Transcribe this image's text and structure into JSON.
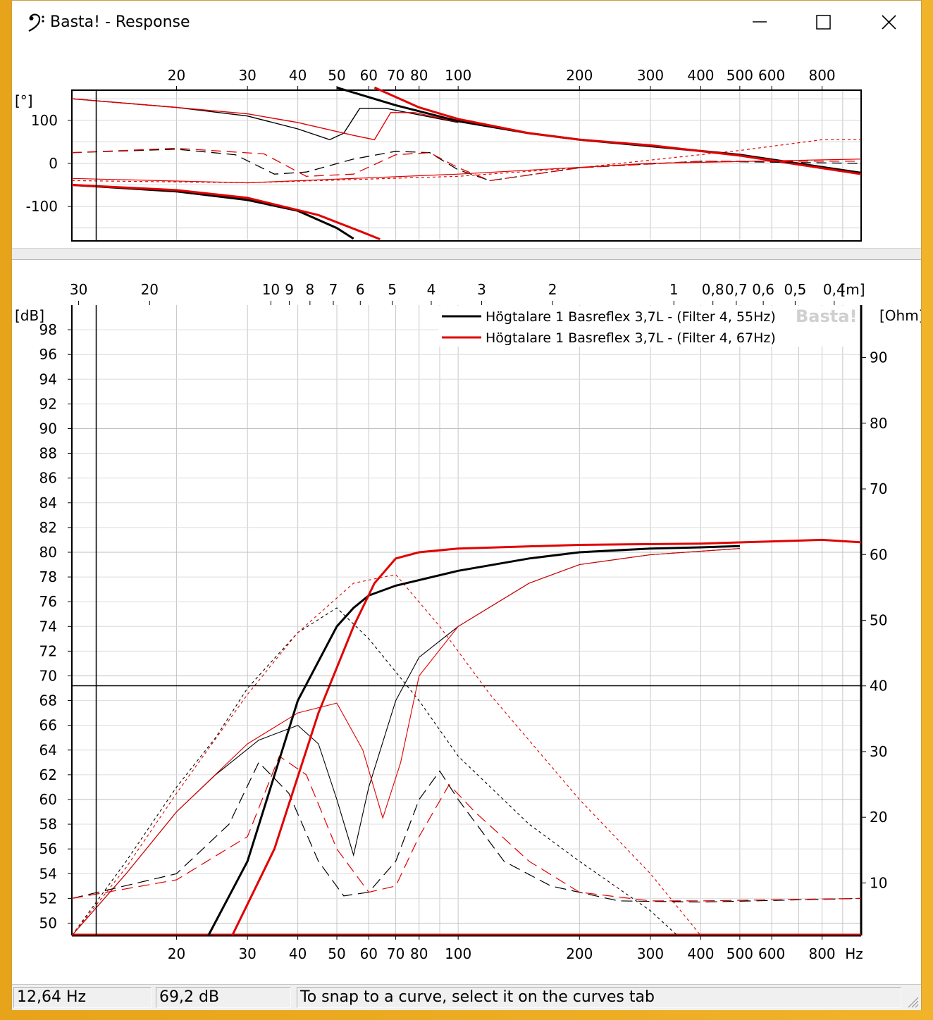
{
  "window": {
    "title": "Basta! - Response",
    "minimize_icon": "minimize-icon",
    "maximize_icon": "maximize-icon",
    "close_icon": "close-icon",
    "app_icon": "bass-clef-icon"
  },
  "phase_chart": {
    "y_unit": "[°]",
    "y_ticks": [
      100,
      0,
      -100
    ],
    "x_tick_labels": [
      "20",
      "30",
      "40",
      "50",
      "60",
      "70",
      "80",
      "100",
      "200",
      "300",
      "400",
      "500",
      "600",
      "800"
    ],
    "x_tick_values": [
      20,
      30,
      40,
      50,
      60,
      70,
      80,
      100,
      200,
      300,
      400,
      500,
      600,
      800
    ]
  },
  "chart_data": {
    "type": "line",
    "xscale": "log",
    "xlim": [
      11,
      1000
    ],
    "ylim": [
      49,
      100
    ],
    "y2lim": [
      2,
      98
    ],
    "ylabel": "[dB]",
    "y2label": "[Ohm]",
    "xlabel": "Hz",
    "top_axis_label": "[m]",
    "y_ticks": [
      50,
      52,
      54,
      56,
      58,
      60,
      62,
      64,
      66,
      68,
      70,
      72,
      74,
      76,
      78,
      80,
      82,
      84,
      86,
      88,
      90,
      92,
      94,
      96,
      98
    ],
    "y2_ticks": [
      10,
      20,
      30,
      40,
      50,
      60,
      70,
      80,
      90
    ],
    "x_tick_labels": [
      "20",
      "30",
      "40",
      "50",
      "60",
      "70",
      "80",
      "100",
      "200",
      "300",
      "400",
      "500",
      "600",
      "800"
    ],
    "x_tick_values": [
      20,
      30,
      40,
      50,
      60,
      70,
      80,
      100,
      200,
      300,
      400,
      500,
      600,
      800
    ],
    "wavelength_labels": [
      "30",
      "20",
      "10",
      "9",
      "8",
      "7",
      "6",
      "5",
      "4",
      "3",
      "2",
      "1",
      "0,8",
      "0,7",
      "0,6",
      "0,5",
      "0,4"
    ],
    "wavelength_values": [
      30,
      20,
      10,
      9,
      8,
      7,
      6,
      5,
      4,
      3,
      2,
      1,
      0.8,
      0.7,
      0.6,
      0.5,
      0.4
    ],
    "watermark": "Basta!",
    "grid": true,
    "legend_position": "top-right",
    "cursor": {
      "x": 12.64,
      "y": 69.2
    },
    "series": [
      {
        "name": "Högtalare 1 Basreflex 3,7L - (Filter 4, 55Hz)",
        "color": "#000000",
        "x": [
          24,
          30,
          40,
          50,
          55,
          60,
          70,
          100,
          150,
          200,
          300,
          400,
          500
        ],
        "y": [
          49,
          55,
          68,
          74,
          75.5,
          76.5,
          77.3,
          78.5,
          79.5,
          80,
          80.3,
          80.4,
          80.5
        ]
      },
      {
        "name": "Högtalare 1 Basreflex 3,7L - (Filter 4, 67Hz)",
        "color": "#e00000",
        "x": [
          27.5,
          35,
          45,
          55,
          62,
          70,
          80,
          100,
          200,
          400,
          800,
          1000
        ],
        "y": [
          49,
          56,
          67,
          74,
          77.5,
          79.5,
          80,
          80.3,
          80.6,
          80.7,
          81,
          80.8
        ]
      }
    ]
  },
  "status": {
    "frequency": "12,64 Hz",
    "level": "69,2 dB",
    "hint": "To snap to a curve, select it on the curves tab"
  }
}
